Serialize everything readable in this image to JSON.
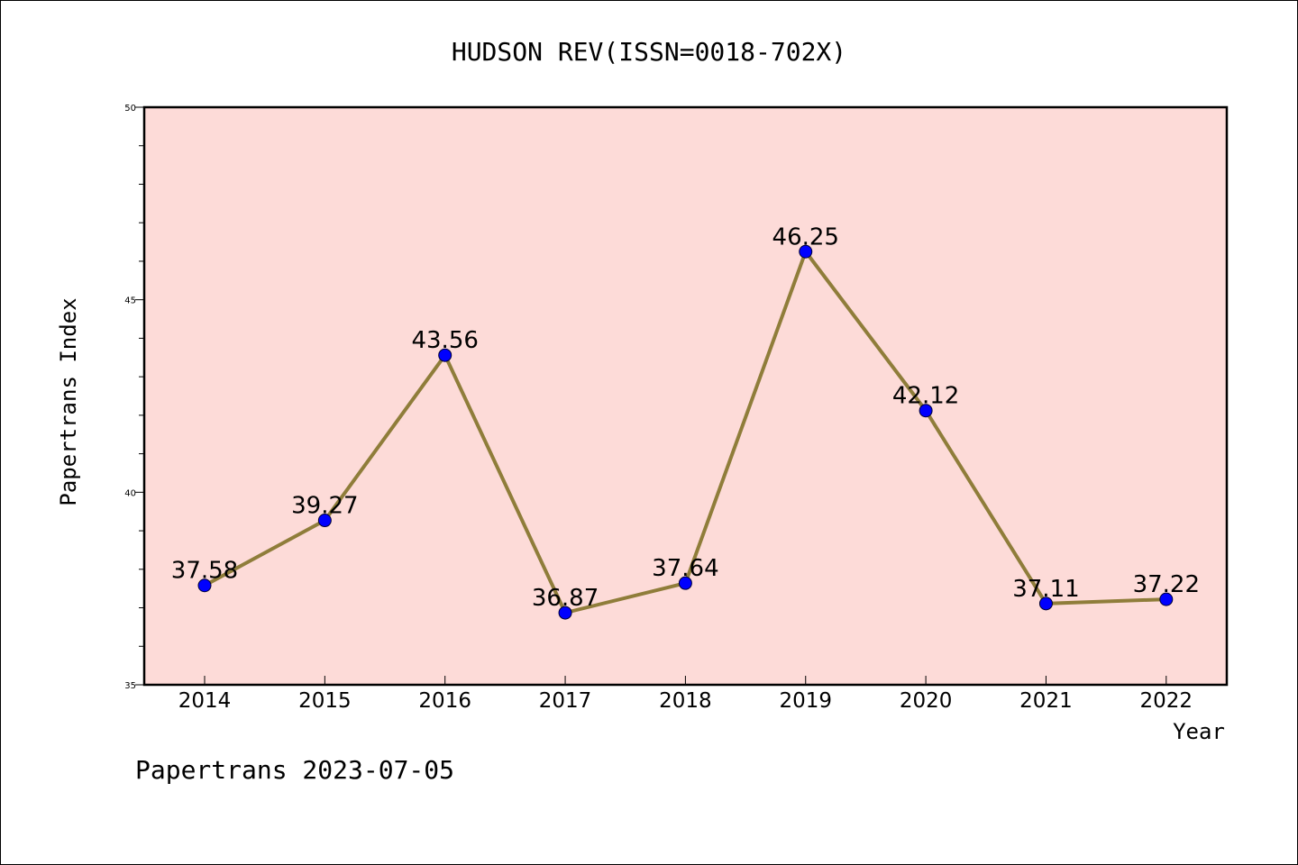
{
  "chart_data": {
    "type": "line",
    "title": "HUDSON REV(ISSN=0018-702X)",
    "xlabel": "Year",
    "ylabel": "Papertrans Index",
    "categories": [
      "2014",
      "2015",
      "2016",
      "2017",
      "2018",
      "2019",
      "2020",
      "2021",
      "2022"
    ],
    "series": [
      {
        "values": [
          37.58,
          39.27,
          43.56,
          36.87,
          37.64,
          46.25,
          42.12,
          37.11,
          37.22
        ],
        "data_labels": [
          "37.58",
          "39.27",
          "43.56",
          "36.87",
          "37.64",
          "46.25",
          "42.12",
          "37.11",
          "37.22"
        ]
      }
    ],
    "ylim": [
      35,
      50
    ],
    "yticks": [
      "35",
      "40",
      "45",
      "50"
    ],
    "grid": false,
    "legend": "none",
    "colors": {
      "plot_background": "#fddbd8",
      "line": "#8f7d3a",
      "marker": "#0000ff"
    }
  },
  "footer": {
    "text": "Papertrans 2023-07-05"
  }
}
